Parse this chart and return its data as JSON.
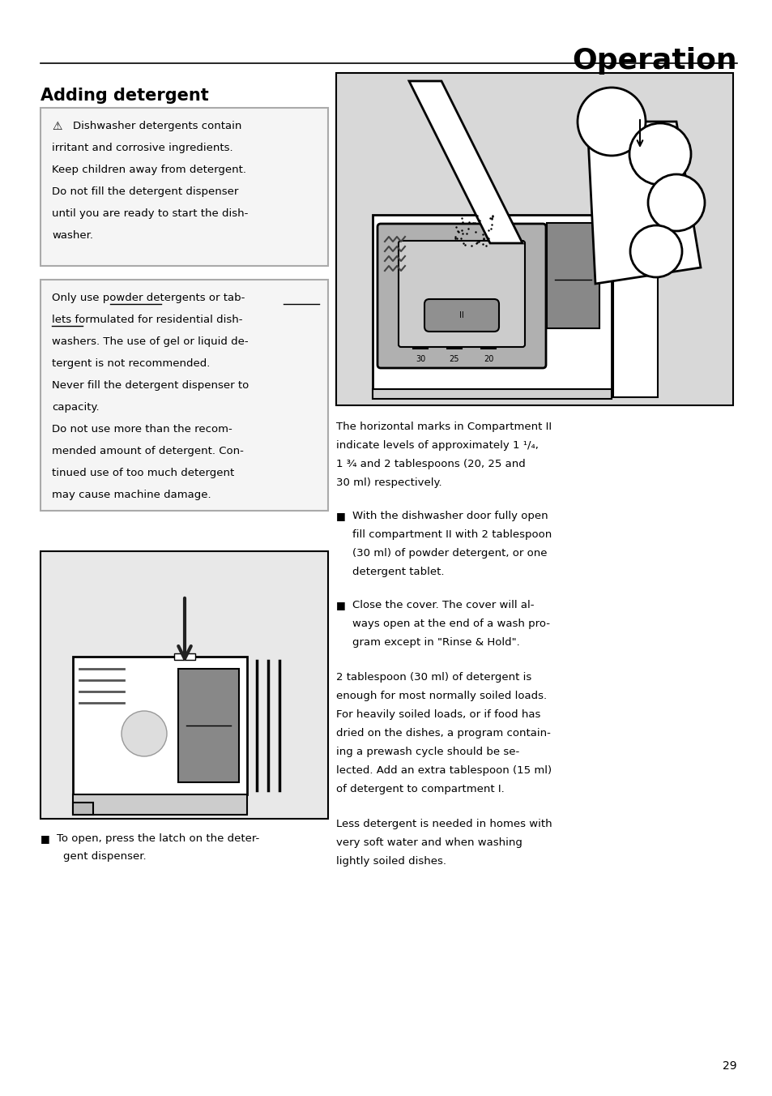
{
  "bg_color": "#ffffff",
  "page_width": 9.54,
  "page_height": 13.52,
  "dpi": 100,
  "header_title": "Operation",
  "section_title": "Adding detergent",
  "page_number": "29",
  "warn_box_text_lines": [
    "⚠  Dishwasher detergents contain",
    "irritant and corrosive ingredients.",
    "Keep children away from detergent.",
    "Do not fill the detergent dispenser",
    "until you are ready to start the dish-",
    "washer."
  ],
  "info_box_text_lines": [
    "Only use powder detergents or tab-",
    "lets formulated for residential dish-",
    "washers. The use of gel or liquid de-",
    "tergent is not recommended.",
    "Never fill the detergent dispenser to",
    "capacity.",
    "Do not use more than the recom-",
    "mended amount of detergent. Con-",
    "tinued use of too much detergent",
    "may cause machine damage."
  ],
  "right_text1_lines": [
    "The horizontal marks in Compartment II",
    "indicate levels of approximately 1 ¹/₄,",
    "1 ¾ and 2 tablespoons (20, 25 and",
    "30 ml) respectively."
  ],
  "bullet1_lines": [
    "With the dishwasher door fully open",
    "fill compartment II with 2 tablespoon",
    "(30 ml) of powder detergent, or one",
    "detergent tablet."
  ],
  "bullet2_lines": [
    "Close the cover. The cover will al-",
    "ways open at the end of a wash pro-",
    "gram except in \"Rinse & Hold\"."
  ],
  "para1_lines": [
    "2 tablespoon (30 ml) of detergent is",
    "enough for most normally soiled loads.",
    "For heavily soiled loads, or if food has",
    "dried on the dishes, a program contain-",
    "ing a prewash cycle should be se-",
    "lected. Add an extra tablespoon (15 ml)",
    "of detergent to compartment I."
  ],
  "para2_lines": [
    "Less detergent is needed in homes with",
    "very soft water and when washing",
    "lightly soiled dishes."
  ],
  "caption_lines": [
    "To open, press the latch on the deter-",
    "gent dispenser."
  ]
}
